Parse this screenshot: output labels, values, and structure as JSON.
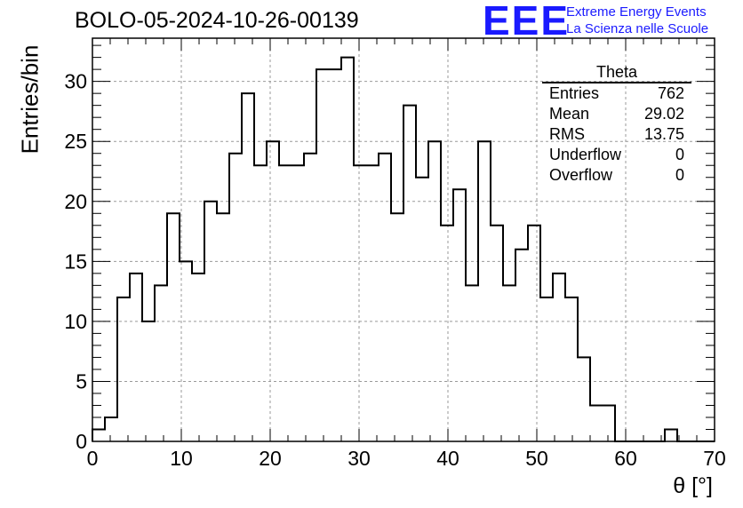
{
  "header": {
    "run_title": "BOLO-05-2024-10-26-00139",
    "logo_text": "EEE",
    "logo_line1": "Extreme Energy Events",
    "logo_line2": "La Scienza nelle Scuole"
  },
  "stats_box": {
    "title": "Theta",
    "rows": [
      {
        "label": "Entries",
        "value": "762"
      },
      {
        "label": "Mean",
        "value": "29.02"
      },
      {
        "label": "RMS",
        "value": "13.75"
      },
      {
        "label": "Underflow",
        "value": "0"
      },
      {
        "label": "Overflow",
        "value": "0"
      }
    ]
  },
  "chart_data": {
    "type": "histogram",
    "xlabel": "θ [°]",
    "ylabel": "Entries/bin",
    "xlim": [
      0,
      70
    ],
    "ylim": [
      0,
      33.6
    ],
    "bin_width": 1.4,
    "bin_start": 0,
    "x_ticks": [
      0,
      10,
      20,
      30,
      40,
      50,
      60,
      70
    ],
    "y_ticks": [
      0,
      5,
      10,
      15,
      20,
      25,
      30
    ],
    "grid": true,
    "line_color": "#000000",
    "values": [
      1,
      2,
      12,
      14,
      10,
      13,
      19,
      15,
      14,
      20,
      19,
      24,
      29,
      23,
      25,
      23,
      23,
      24,
      31,
      31,
      32,
      23,
      23,
      24,
      19,
      28,
      22,
      25,
      18,
      21,
      13,
      25,
      18,
      13,
      16,
      18,
      12,
      14,
      12,
      7,
      3,
      3,
      0,
      0,
      0,
      0,
      1,
      0,
      0,
      0
    ]
  }
}
